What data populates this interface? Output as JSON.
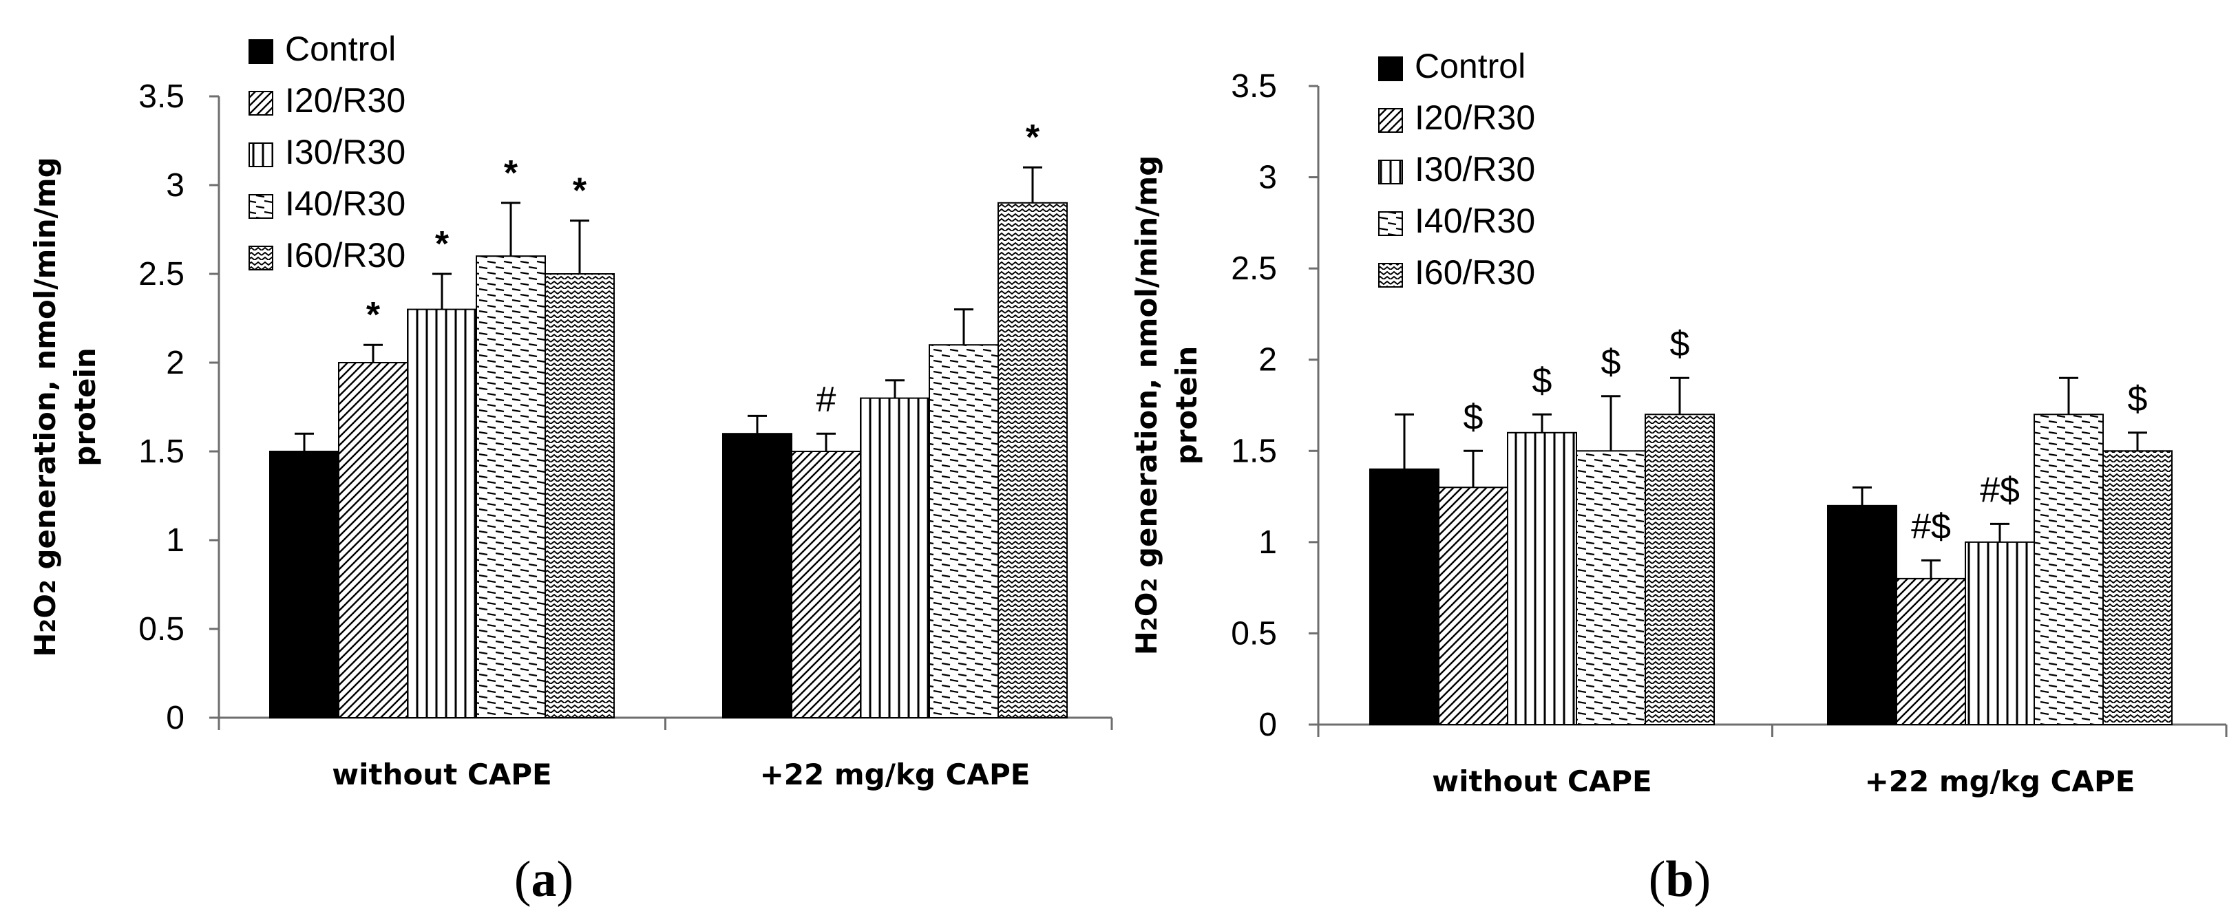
{
  "chart_data": [
    {
      "type": "bar",
      "panel": "(a)",
      "ylabel": "H2O2 generation, nmol/min/mg protein",
      "ylim": [
        0,
        3.5
      ],
      "yticks": [
        "0",
        "0.5",
        "1",
        "1.5",
        "2",
        "2.5",
        "3",
        "3.5"
      ],
      "categories": [
        "without CAPE",
        "+22 mg/kg CAPE"
      ],
      "legend": [
        "Control",
        "I20/R30",
        "I30/R30",
        "I40/R30",
        "I60/R30"
      ],
      "series": [
        {
          "name": "Control",
          "values": [
            1.5,
            1.6
          ],
          "errors": [
            0.1,
            0.1
          ],
          "annotations": [
            "",
            ""
          ]
        },
        {
          "name": "I20/R30",
          "values": [
            2.0,
            1.5
          ],
          "errors": [
            0.1,
            0.1
          ],
          "annotations": [
            "*",
            "#"
          ]
        },
        {
          "name": "I30/R30",
          "values": [
            2.3,
            1.8
          ],
          "errors": [
            0.2,
            0.1
          ],
          "annotations": [
            "*",
            ""
          ]
        },
        {
          "name": "I40/R30",
          "values": [
            2.6,
            2.1
          ],
          "errors": [
            0.3,
            0.2
          ],
          "annotations": [
            "*",
            ""
          ]
        },
        {
          "name": "I60/R30",
          "values": [
            2.5,
            2.9
          ],
          "errors": [
            0.3,
            0.2
          ],
          "annotations": [
            "*",
            "*"
          ]
        }
      ]
    },
    {
      "type": "bar",
      "panel": "(b)",
      "ylabel": "H2O2 generation, nmol/min/mg protein",
      "ylim": [
        0,
        3.5
      ],
      "yticks": [
        "0",
        "0.5",
        "1",
        "1.5",
        "2",
        "2.5",
        "3",
        "3.5"
      ],
      "categories": [
        "without CAPE",
        "+22 mg/kg CAPE"
      ],
      "legend": [
        "Control",
        "I20/R30",
        "I30/R30",
        "I40/R30",
        "I60/R30"
      ],
      "series": [
        {
          "name": "Control",
          "values": [
            1.4,
            1.2
          ],
          "errors": [
            0.3,
            0.1
          ],
          "annotations": [
            "",
            ""
          ]
        },
        {
          "name": "I20/R30",
          "values": [
            1.3,
            0.8
          ],
          "errors": [
            0.2,
            0.1
          ],
          "annotations": [
            "$",
            "#$"
          ]
        },
        {
          "name": "I30/R30",
          "values": [
            1.6,
            1.0
          ],
          "errors": [
            0.1,
            0.1
          ],
          "annotations": [
            "$",
            "#$"
          ]
        },
        {
          "name": "I40/R30",
          "values": [
            1.5,
            1.7
          ],
          "errors": [
            0.3,
            0.2
          ],
          "annotations": [
            "$",
            ""
          ]
        },
        {
          "name": "I60/R30",
          "values": [
            1.7,
            1.5
          ],
          "errors": [
            0.2,
            0.1
          ],
          "annotations": [
            "$",
            "$"
          ]
        }
      ]
    }
  ]
}
